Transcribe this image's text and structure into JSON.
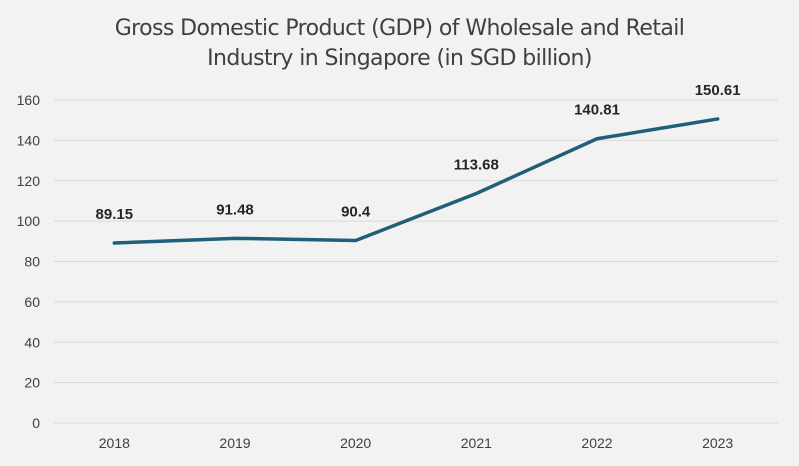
{
  "chart_data": {
    "type": "line",
    "title_lines": [
      "Gross Domestic Product (GDP) of Wholesale and Retail",
      "Industry in Singapore (in SGD billion)"
    ],
    "title": "Gross Domestic Product (GDP) of Wholesale and Retail Industry in Singapore (in SGD billion)",
    "xlabel": "",
    "ylabel": "",
    "categories": [
      "2018",
      "2019",
      "2020",
      "2021",
      "2022",
      "2023"
    ],
    "series": [
      {
        "name": "GDP (SGD billion)",
        "values": [
          89.15,
          91.48,
          90.4,
          113.68,
          140.81,
          150.61
        ],
        "labels": [
          "89.15",
          "91.48",
          "90.4",
          "113.68",
          "140.81",
          "150.61"
        ],
        "color": "#1f5f7a"
      }
    ],
    "ylim": [
      0,
      160
    ],
    "yticks": [
      0,
      20,
      40,
      60,
      80,
      100,
      120,
      140,
      160
    ],
    "grid": true,
    "legend": "none"
  }
}
